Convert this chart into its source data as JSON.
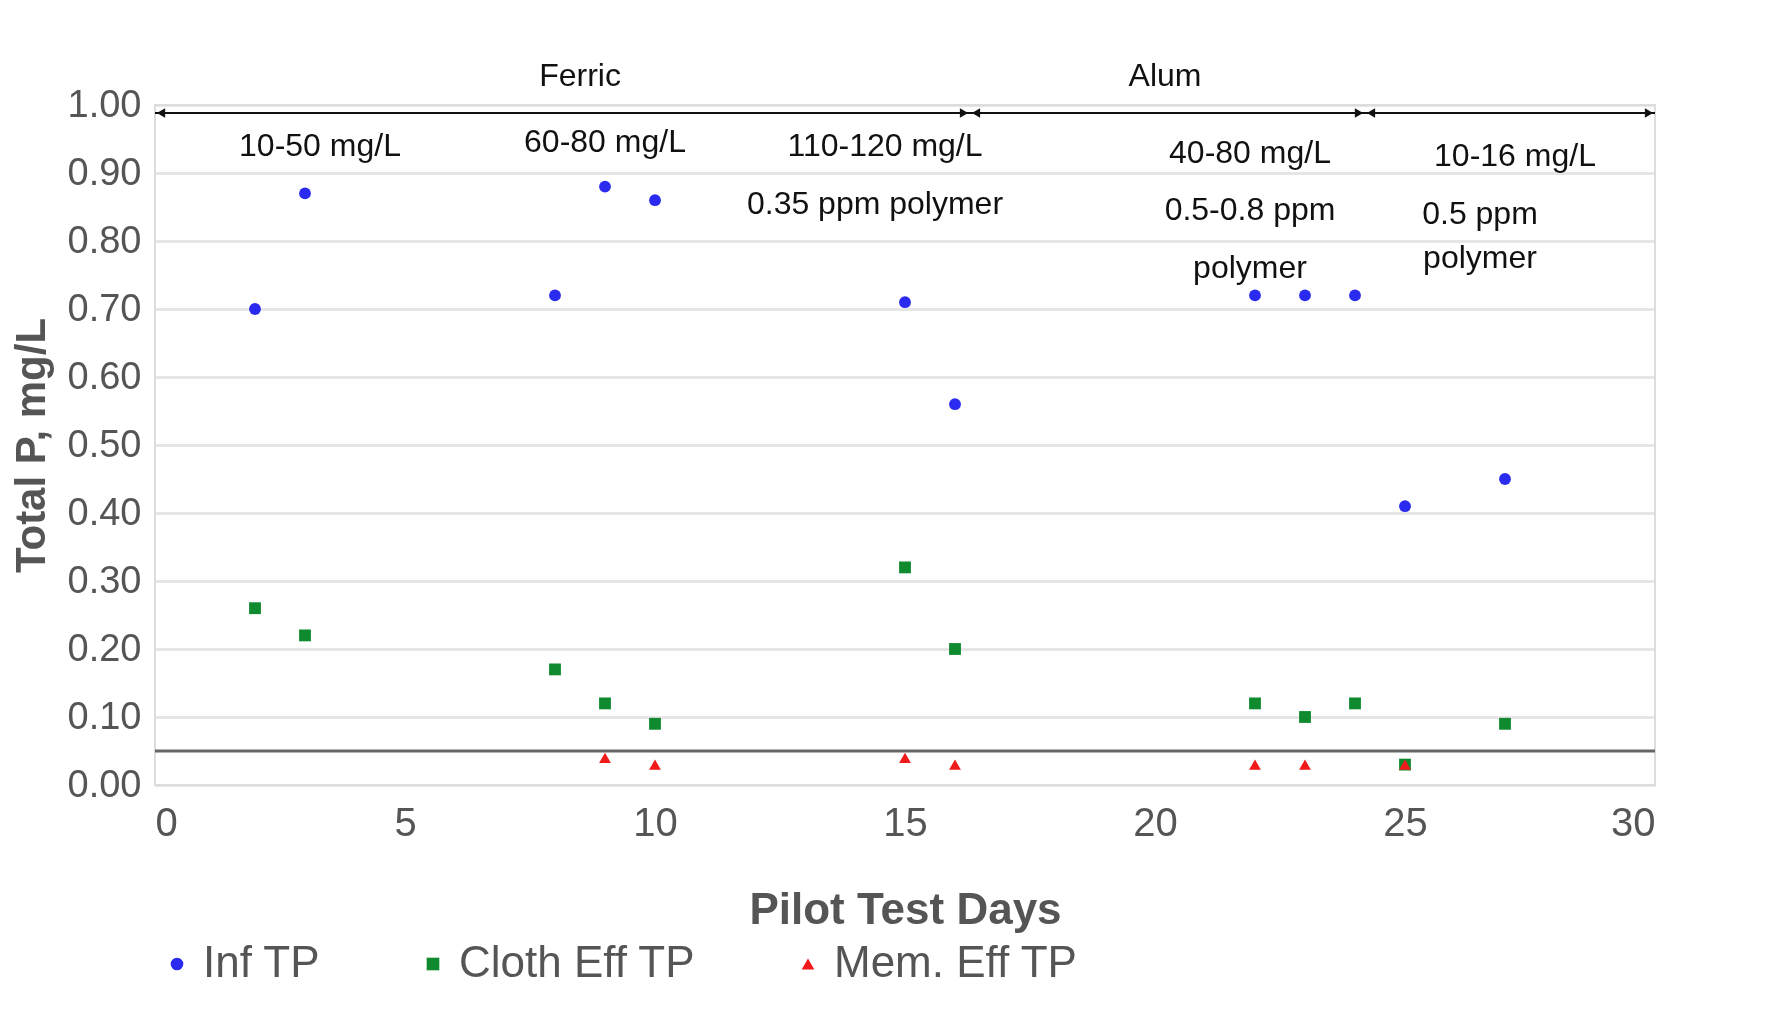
{
  "chart_data": {
    "type": "scatter",
    "xlabel": "Pilot Test  Days",
    "ylabel": "Total P, mg/L",
    "xlim": [
      0,
      30
    ],
    "xticks": [
      0,
      5,
      10,
      15,
      20,
      25,
      30
    ],
    "ylim": [
      0,
      1
    ],
    "yticks": [
      {
        "value": 0,
        "label": "0.00"
      },
      {
        "value": 0.1,
        "label": "0.10"
      },
      {
        "value": 0.2,
        "label": "0.20"
      },
      {
        "value": 0.3,
        "label": "0.30"
      },
      {
        "value": 0.4,
        "label": "0.40"
      },
      {
        "value": 0.5,
        "label": "0.50"
      },
      {
        "value": 0.6,
        "label": "0.60"
      },
      {
        "value": 0.7,
        "label": "0.70"
      },
      {
        "value": 0.8,
        "label": "0.80"
      },
      {
        "value": 0.9,
        "label": "0.90"
      },
      {
        "value": 1,
        "label": "1.00"
      }
    ],
    "grid": "y",
    "legend": "bottom",
    "series": [
      {
        "name": "Inf TP",
        "color": "#2b2bf0",
        "marker": "circle",
        "x": [
          2,
          3,
          8,
          9,
          10,
          15,
          16,
          22,
          23,
          24,
          25,
          27
        ],
        "values": [
          0.7,
          0.87,
          0.72,
          0.88,
          0.86,
          0.71,
          0.56,
          0.72,
          0.72,
          0.72,
          0.41,
          0.45
        ]
      },
      {
        "name": "Cloth Eff TP",
        "color": "#0f8a2e",
        "marker": "square",
        "x": [
          2,
          3,
          8,
          9,
          10,
          15,
          16,
          22,
          23,
          24,
          25,
          27
        ],
        "values": [
          0.26,
          0.22,
          0.17,
          0.12,
          0.09,
          0.32,
          0.2,
          0.12,
          0.1,
          0.12,
          0.03,
          0.09
        ]
      },
      {
        "name": "Mem. Eff TP",
        "color": "#f01a1a",
        "marker": "triangle",
        "x": [
          9,
          10,
          15,
          16,
          22,
          23,
          25
        ],
        "values": [
          0.04,
          0.03,
          0.04,
          0.03,
          0.03,
          0.03,
          0.03
        ]
      }
    ],
    "ref_lines": [
      {
        "axis": "y",
        "value": 0.05,
        "color": "#666666"
      }
    ],
    "annotations": [
      "Ferric",
      "Alum",
      "10-50 mg/L",
      "60-80 mg/L",
      "110-120 mg/L",
      "0.35 ppm polymer",
      "40-80 mg/L",
      "0.5-0.8 ppm",
      "polymer",
      "10-16 mg/L",
      "0.5 ppm",
      "polymer"
    ]
  }
}
